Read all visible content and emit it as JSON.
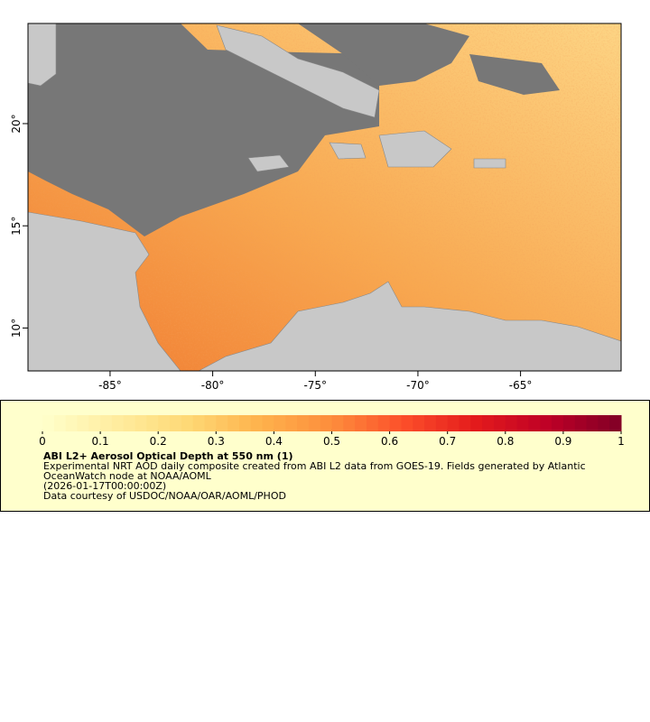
{
  "map": {
    "xlim": [
      -89,
      -60.1
    ],
    "ylim": [
      7.9,
      24.9
    ],
    "xticks": [
      {
        "value": -85,
        "label": "-85°"
      },
      {
        "value": -80,
        "label": "-80°"
      },
      {
        "value": -75,
        "label": "-75°"
      },
      {
        "value": -70,
        "label": "-70°"
      },
      {
        "value": -65,
        "label": "-65°"
      }
    ],
    "yticks": [
      {
        "value": 10,
        "label": "10°"
      },
      {
        "value": 15,
        "label": "15°"
      },
      {
        "value": 20,
        "label": "20°"
      }
    ]
  },
  "colorbar": {
    "range": [
      0,
      1
    ],
    "ticks": [
      0,
      0.1,
      0.2,
      0.3,
      0.4,
      0.5,
      0.6,
      0.7,
      0.8,
      0.9,
      1
    ],
    "colormap": [
      "#ffffcc",
      "#ffeda0",
      "#fed976",
      "#feb24c",
      "#fd8d3c",
      "#fc4e2a",
      "#e31a1c",
      "#bd0026",
      "#800026"
    ]
  },
  "legend": {
    "title": "ABI L2+ Aerosol Optical Depth at 550 nm (1)",
    "description": "Experimental NRT AOD daily composite created from ABI L2 data from GOES-19. Fields generated by Atlantic OceanWatch node at NOAA/AOML",
    "time": "(2026-01-17T00:00:00Z)",
    "credit": "Data courtesy of USDOC/NOAA/OAR/AOML/PHOD"
  }
}
